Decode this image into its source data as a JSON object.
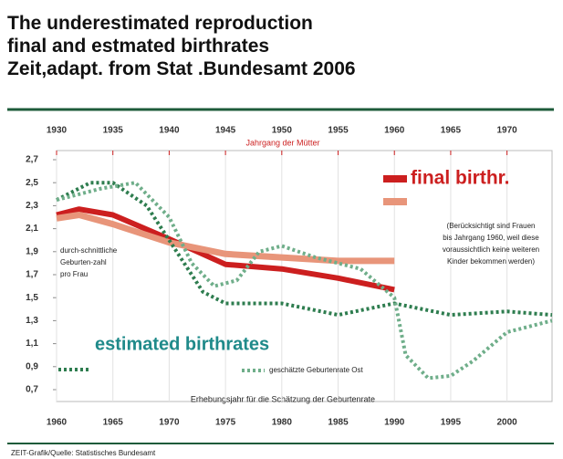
{
  "chart_data": {
    "type": "line",
    "title_lines": [
      "The underestimated reproduction",
      "final and estmated birthrates",
      "Zeit,adapt. from Stat .Bundesamt 2006"
    ],
    "x2_label": "Jahrgang der Mütter",
    "x_label": "Erhebungsjahr für die Schätzung der Geburtenrate",
    "y_label": "durch-schnittliche Geburten-zahl pro Frau",
    "note": "(Berücksichtigt sind Frauen bis Jahrgang 1960, weil diese voraussichtlich keine weiteren Kinder bekommen werden)",
    "source": "ZEIT-Grafik/Quelle: Statistisches Bundesamt",
    "xlim": [
      1960,
      2004
    ],
    "xticks": [
      1960,
      1965,
      1970,
      1975,
      1980,
      1985,
      1990,
      1995,
      2000
    ],
    "x2lim": [
      1930,
      1974
    ],
    "x2ticks": [
      1930,
      1935,
      1940,
      1945,
      1950,
      1955,
      1960,
      1965,
      1970
    ],
    "ylim": [
      0.7,
      2.7
    ],
    "yticks": [
      {
        "value": 0.7,
        "label": "0,7"
      },
      {
        "value": 0.9,
        "label": "0,9"
      },
      {
        "value": 1.1,
        "label": "1,1"
      },
      {
        "value": 1.3,
        "label": "1,3"
      },
      {
        "value": 1.5,
        "label": "1,5"
      },
      {
        "value": 1.7,
        "label": "1,7"
      },
      {
        "value": 1.9,
        "label": "1,9"
      },
      {
        "value": 2.1,
        "label": "2,1"
      },
      {
        "value": 2.3,
        "label": "2,3"
      },
      {
        "value": 2.5,
        "label": "2,5"
      },
      {
        "value": 2.7,
        "label": "2,7"
      }
    ],
    "grid": true,
    "series": [
      {
        "name": "final birthr.",
        "color": "#cc1f1f",
        "axis": "x2",
        "style": "solid",
        "x": [
          1930,
          1932,
          1935,
          1940,
          1945,
          1950,
          1955,
          1960
        ],
        "values": [
          2.22,
          2.27,
          2.22,
          2.01,
          1.79,
          1.75,
          1.67,
          1.57
        ]
      },
      {
        "color": "#e8957a",
        "axis": "x2",
        "style": "solid",
        "x": [
          1930,
          1932,
          1935,
          1940,
          1945,
          1950,
          1955,
          1960
        ],
        "values": [
          2.19,
          2.22,
          2.14,
          1.98,
          1.88,
          1.85,
          1.82,
          1.82
        ]
      },
      {
        "name": "estimated birthrates",
        "color": "#2e7d4f",
        "style": "dotted",
        "x": [
          1960,
          1963,
          1965,
          1968,
          1970,
          1973,
          1975,
          1980,
          1985,
          1990,
          1995,
          2000,
          2004
        ],
        "values": [
          2.35,
          2.5,
          2.5,
          2.3,
          2.0,
          1.55,
          1.45,
          1.45,
          1.35,
          1.45,
          1.35,
          1.38,
          1.35
        ]
      },
      {
        "name": "geschätzte Geburtenrate Ost",
        "color": "#6fae8a",
        "style": "dotted",
        "x": [
          1960,
          1964,
          1967,
          1970,
          1972,
          1974,
          1976,
          1978,
          1980,
          1983,
          1987,
          1990,
          1991,
          1993,
          1995,
          1997,
          2000,
          2004
        ],
        "values": [
          2.35,
          2.45,
          2.5,
          2.2,
          1.8,
          1.6,
          1.65,
          1.9,
          1.95,
          1.85,
          1.75,
          1.5,
          1.0,
          0.8,
          0.82,
          0.95,
          1.2,
          1.3
        ]
      }
    ]
  }
}
